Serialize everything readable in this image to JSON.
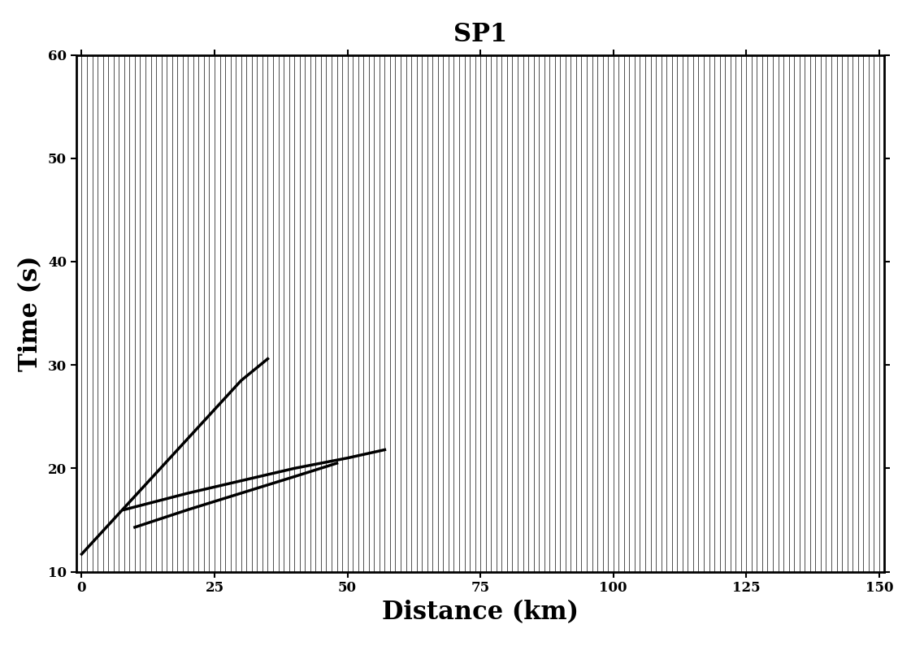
{
  "chart_data": {
    "type": "seismic_section",
    "title": "SP1",
    "x_label": "Distance (km)",
    "y_label": "Time (s)",
    "xlim": [
      -1,
      151
    ],
    "ylim": [
      10,
      60
    ],
    "xticks": [
      0,
      25,
      50,
      75,
      100,
      125,
      150
    ],
    "yticks": [
      10,
      20,
      30,
      40,
      50,
      60
    ],
    "traces": [
      0,
      1,
      2,
      3,
      4,
      5,
      6,
      7,
      8,
      9,
      10,
      11,
      12,
      13,
      14,
      15,
      16,
      17,
      18,
      19,
      20,
      21,
      22,
      23,
      24,
      25,
      26,
      27,
      28,
      29,
      30,
      31,
      32,
      33,
      34,
      35,
      36,
      37,
      38,
      39,
      40,
      41,
      42,
      43,
      44,
      45,
      46,
      47,
      48,
      49,
      50,
      51,
      52,
      53,
      54,
      55,
      56,
      57,
      58,
      59,
      60,
      61,
      62,
      63,
      64,
      65,
      66,
      67,
      68,
      69,
      70,
      71,
      72,
      73,
      74,
      75,
      76,
      77,
      78,
      79,
      80,
      81,
      82,
      83,
      84,
      85,
      86,
      87,
      88,
      89,
      90,
      91,
      92,
      93,
      94,
      95,
      96,
      97,
      98,
      99,
      100,
      101,
      102,
      103,
      104,
      105,
      106,
      107,
      108,
      109,
      110,
      111,
      112,
      113,
      114,
      115,
      116,
      117,
      118,
      119,
      120,
      121,
      122,
      123,
      124,
      125,
      126,
      127,
      128,
      129,
      130,
      131,
      132,
      133,
      134,
      135,
      136,
      137,
      138,
      139,
      140,
      141,
      142,
      143,
      144,
      145,
      146,
      147,
      148,
      149,
      150
    ],
    "trace_color": "#000000",
    "series": [
      {
        "color": "#000000",
        "x": [
          0,
          5,
          10,
          15,
          20,
          25,
          30,
          35
        ],
        "values": [
          11.7,
          14.5,
          17.3,
          20.1,
          22.9,
          25.7,
          28.5,
          30.6
        ]
      },
      {
        "color": "#000000",
        "x": [
          8,
          20,
          30,
          40,
          50,
          57
        ],
        "values": [
          16.0,
          17.6,
          18.8,
          20.0,
          21.0,
          21.8
        ]
      },
      {
        "color": "#000000",
        "x": [
          10,
          20,
          30,
          40,
          48
        ],
        "values": [
          14.3,
          16.0,
          17.6,
          19.2,
          20.5
        ]
      }
    ]
  }
}
